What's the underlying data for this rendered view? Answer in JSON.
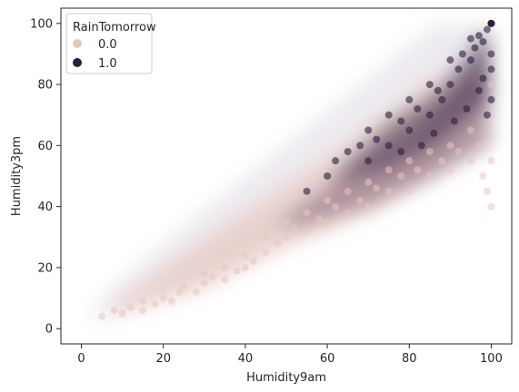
{
  "chart_data": {
    "type": "scatter",
    "title": "",
    "xlabel": "Humidity9am",
    "ylabel": "Humidity3pm",
    "xlim": [
      -5,
      105
    ],
    "ylim": [
      -5,
      105
    ],
    "xticks": [
      0,
      20,
      40,
      60,
      80,
      100
    ],
    "yticks": [
      0,
      20,
      40,
      60,
      80,
      100
    ],
    "grid": false,
    "legend": {
      "title": "RainTomorrow",
      "placement": "top-left",
      "entries": [
        {
          "label": "0.0",
          "color": "#e8c6bf"
        },
        {
          "label": "1.0",
          "color": "#2d1e3e"
        }
      ]
    },
    "series": [
      {
        "name": "0.0",
        "color": "#e8c6bf",
        "points": [
          [
            5,
            4
          ],
          [
            8,
            6
          ],
          [
            10,
            5
          ],
          [
            12,
            7
          ],
          [
            15,
            6
          ],
          [
            15,
            9
          ],
          [
            18,
            8
          ],
          [
            20,
            10
          ],
          [
            22,
            9
          ],
          [
            24,
            12
          ],
          [
            25,
            14
          ],
          [
            28,
            12
          ],
          [
            30,
            15
          ],
          [
            30,
            18
          ],
          [
            32,
            17
          ],
          [
            35,
            16
          ],
          [
            35,
            20
          ],
          [
            38,
            19
          ],
          [
            40,
            20
          ],
          [
            40,
            24
          ],
          [
            42,
            22
          ],
          [
            45,
            25
          ],
          [
            45,
            30
          ],
          [
            48,
            28
          ],
          [
            50,
            30
          ],
          [
            50,
            35
          ],
          [
            52,
            33
          ],
          [
            55,
            32
          ],
          [
            55,
            38
          ],
          [
            58,
            36
          ],
          [
            60,
            35
          ],
          [
            60,
            42
          ],
          [
            62,
            40
          ],
          [
            65,
            38
          ],
          [
            65,
            45
          ],
          [
            68,
            42
          ],
          [
            70,
            40
          ],
          [
            70,
            48
          ],
          [
            72,
            46
          ],
          [
            75,
            45
          ],
          [
            75,
            52
          ],
          [
            78,
            50
          ],
          [
            80,
            45
          ],
          [
            80,
            55
          ],
          [
            82,
            52
          ],
          [
            85,
            50
          ],
          [
            85,
            58
          ],
          [
            88,
            55
          ],
          [
            90,
            52
          ],
          [
            90,
            60
          ],
          [
            92,
            58
          ],
          [
            95,
            55
          ],
          [
            95,
            65
          ],
          [
            97,
            60
          ],
          [
            98,
            50
          ],
          [
            99,
            45
          ],
          [
            100,
            40
          ],
          [
            100,
            55
          ],
          [
            100,
            70
          ],
          [
            100,
            80
          ]
        ]
      },
      {
        "name": "1.0",
        "color": "#2d1e3e",
        "points": [
          [
            55,
            45
          ],
          [
            60,
            50
          ],
          [
            62,
            55
          ],
          [
            65,
            58
          ],
          [
            68,
            60
          ],
          [
            70,
            55
          ],
          [
            70,
            65
          ],
          [
            72,
            62
          ],
          [
            75,
            60
          ],
          [
            75,
            70
          ],
          [
            78,
            68
          ],
          [
            80,
            65
          ],
          [
            80,
            75
          ],
          [
            82,
            72
          ],
          [
            85,
            70
          ],
          [
            85,
            80
          ],
          [
            87,
            78
          ],
          [
            88,
            75
          ],
          [
            90,
            80
          ],
          [
            90,
            88
          ],
          [
            92,
            85
          ],
          [
            93,
            90
          ],
          [
            95,
            88
          ],
          [
            95,
            95
          ],
          [
            96,
            92
          ],
          [
            97,
            96
          ],
          [
            98,
            94
          ],
          [
            99,
            98
          ],
          [
            100,
            100
          ],
          [
            100,
            90
          ],
          [
            100,
            85
          ],
          [
            100,
            75
          ],
          [
            99,
            70
          ],
          [
            98,
            82
          ],
          [
            97,
            78
          ],
          [
            94,
            72
          ],
          [
            91,
            68
          ],
          [
            86,
            64
          ],
          [
            83,
            60
          ],
          [
            78,
            58
          ]
        ]
      }
    ]
  }
}
